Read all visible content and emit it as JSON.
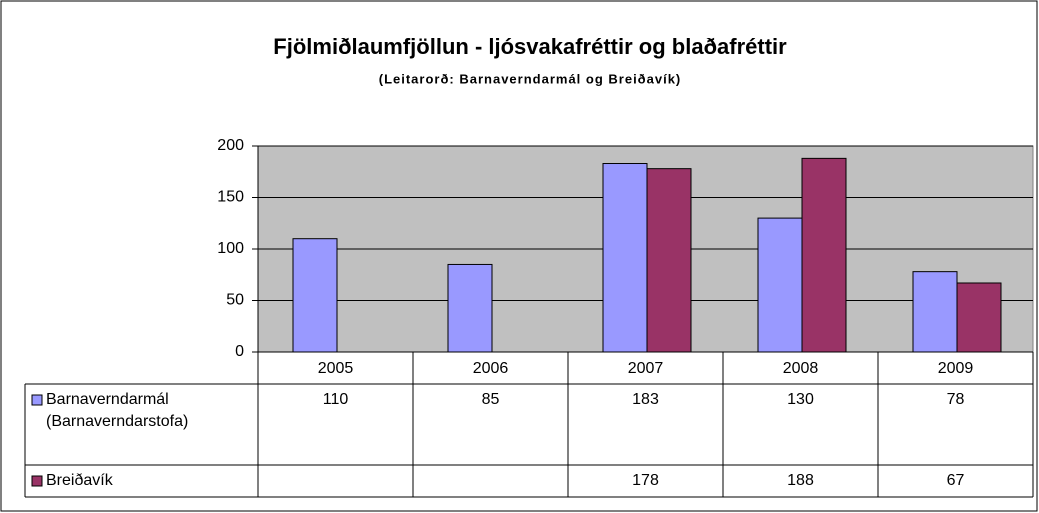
{
  "chart_data": {
    "type": "bar",
    "title": "Fjölmiðlaumfjöllun - ljósvakafréttir og blaðafréttir",
    "subtitle": "(Leitarorð:  Barnaverndarmál og Breiðavík)",
    "categories": [
      "2005",
      "2006",
      "2007",
      "2008",
      "2009"
    ],
    "series": [
      {
        "name": "Barnaverndarmál (Barnaverndarstofa)",
        "color": "#9999ff",
        "values": [
          110,
          85,
          183,
          130,
          78
        ]
      },
      {
        "name": "Breiðavík",
        "color": "#993366",
        "values": [
          null,
          null,
          178,
          188,
          67
        ]
      }
    ],
    "ylim": [
      0,
      200
    ],
    "yticks": [
      0,
      50,
      100,
      150,
      200
    ],
    "grid": true
  }
}
